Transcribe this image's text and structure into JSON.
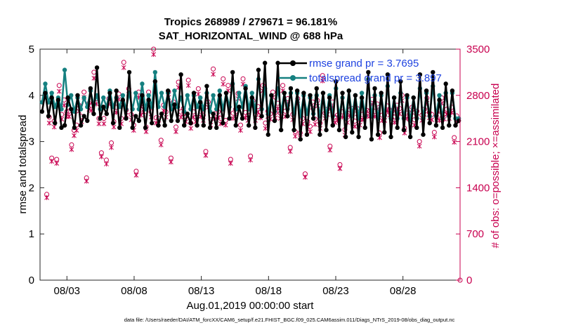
{
  "chart_data": {
    "type": "line",
    "title_line1": "Tropics 268989 / 279671 = 96.181%",
    "title_line2": "SAT_HORIZONTAL_WIND @ 688 hPa",
    "xlabel": "Aug.01,2019 00:00:00 start",
    "ylabel_left": "rmse and totalspread",
    "ylabel_right": "# of obs: o=possible; ×=assimilated",
    "footnote": "data file: /Users/raeder/DAI/ATM_forcXX/CAM6_setup/f.e21.FHIST_BGC.f09_025.CAM6assim.011/Diags_NTrS_2019-08/obs_diag_output.nc",
    "xlim": [
      0,
      31.25
    ],
    "ylim_left": [
      0,
      5
    ],
    "ylim_right": [
      0,
      3500
    ],
    "x_ticks": [
      2,
      7,
      12,
      17,
      22,
      27
    ],
    "x_tick_labels": [
      "08/03",
      "08/08",
      "08/13",
      "08/18",
      "08/23",
      "08/28"
    ],
    "y_left_ticks": [
      0,
      1,
      2,
      3,
      4,
      5
    ],
    "y_left_tick_labels": [
      "0",
      "1",
      "2",
      "3",
      "4",
      "5"
    ],
    "y_right_ticks": [
      0,
      700,
      1400,
      2100,
      2800,
      3500
    ],
    "y_right_tick_labels": [
      "0",
      "700",
      "1400",
      "2100",
      "2800",
      "3500"
    ],
    "colors": {
      "rmse": "#000000",
      "spread": "#158080",
      "obs": "#c8004f",
      "legend_text": "#1f43e0",
      "right_axis": "#c8004f"
    },
    "series": [
      {
        "name": "rmse",
        "legend": "rmse grand pr = 3.7695",
        "values": [
          3.65,
          4.05,
          3.55,
          3.95,
          3.4,
          3.9,
          3.3,
          3.35,
          3.95,
          3.7,
          3.3,
          4.0,
          3.35,
          3.55,
          3.45,
          4.15,
          3.6,
          4.6,
          3.5,
          3.75,
          3.6,
          4.05,
          3.4,
          4.1,
          3.3,
          3.9,
          3.5,
          4.5,
          3.3,
          3.55,
          3.45,
          4.0,
          3.3,
          3.9,
          3.4,
          4.3,
          3.35,
          3.6,
          3.35,
          4.1,
          3.45,
          3.8,
          3.45,
          4.45,
          3.35,
          3.6,
          3.4,
          4.05,
          3.35,
          3.85,
          3.35,
          4.2,
          3.3,
          3.6,
          3.3,
          4.0,
          3.4,
          4.05,
          3.5,
          4.5,
          3.35,
          3.75,
          3.5,
          4.15,
          3.35,
          3.95,
          3.3,
          4.55,
          3.55,
          4.7,
          3.15,
          4.0,
          3.45,
          4.7,
          3.25,
          4.05,
          3.55,
          4.15,
          3.25,
          4.1,
          3.05,
          4.05,
          3.15,
          4.0,
          3.5,
          4.15,
          3.15,
          4.05,
          3.25,
          3.95,
          3.35,
          4.3,
          3.25,
          4.05,
          3.1,
          4.1,
          3.2,
          4.0,
          3.1,
          3.95,
          3.3,
          4.5,
          3.05,
          4.15,
          3.15,
          4.05,
          3.2,
          4.45,
          3.1,
          3.95,
          3.3,
          4.3,
          3.25,
          4.0,
          3.1,
          3.95,
          3.3,
          4.45,
          3.15,
          4.1,
          3.4,
          4.5,
          3.35,
          3.9,
          3.3,
          4.25,
          3.35,
          4.1,
          3.35,
          3.45
        ]
      },
      {
        "name": "totalspread",
        "legend": "totalspread grand pr = 3.897",
        "values": [
          3.85,
          4.25,
          3.85,
          4.05,
          3.75,
          3.95,
          3.7,
          4.55,
          3.8,
          4.0,
          3.65,
          3.95,
          3.7,
          3.95,
          3.75,
          4.1,
          3.8,
          4.0,
          3.7,
          3.95,
          3.75,
          4.1,
          3.75,
          3.95,
          3.75,
          4.0,
          3.7,
          4.05,
          3.7,
          4.05,
          3.7,
          4.25,
          3.7,
          4.0,
          3.75,
          4.5,
          3.75,
          4.05,
          3.75,
          4.05,
          3.7,
          4.1,
          3.75,
          3.95,
          3.65,
          4.0,
          3.7,
          4.0,
          3.75,
          3.95,
          3.7,
          4.05,
          3.65,
          4.0,
          3.7,
          4.1,
          3.7,
          4.05,
          3.75,
          4.25,
          3.7,
          4.05,
          3.75,
          4.2,
          3.7,
          4.05,
          3.65,
          4.35,
          3.7,
          4.15,
          3.6,
          4.0,
          3.65,
          4.15,
          3.65,
          4.05,
          3.7,
          4.05,
          3.6,
          4.05,
          3.55,
          4.0,
          3.6,
          3.95,
          3.6,
          4.0,
          3.55,
          4.05,
          3.55,
          4.0,
          3.55,
          4.15,
          3.55,
          3.95,
          3.5,
          4.1,
          3.55,
          4.0,
          3.5,
          4.05,
          3.55,
          4.35,
          3.55,
          4.0,
          3.5,
          4.0,
          3.55,
          4.2,
          3.5,
          3.95,
          3.5,
          4.05,
          3.5,
          3.95,
          3.45,
          3.95,
          3.5,
          4.15,
          3.5,
          4.05,
          3.55,
          4.2,
          3.55,
          4.0,
          3.5,
          4.05,
          3.55,
          4.05,
          3.5,
          3.5
        ]
      },
      {
        "name": "obs_possible",
        "marker": "o",
        "values": [
          1300,
          2470,
          1850,
          2410,
          1830,
          2950,
          2510,
          2730,
          2550,
          2560,
          2050,
          2270,
          2350,
          2650,
          2480,
          2850,
          1550,
          2680,
          2650,
          3150,
          2750,
          2450,
          1930,
          2450,
          1820,
          2750,
          2080,
          2400,
          2620,
          2820,
          2450,
          3300,
          2580,
          2900,
          2510,
          2350,
          1650,
          2850,
          2580,
          2630,
          2320,
          2850,
          2550,
          3500,
          2460,
          2450,
          2120,
          2650,
          2550,
          2850,
          1850,
          2700,
          2320,
          3000,
          2550,
          2600,
          2480,
          3030,
          2380,
          2550,
          2470,
          2900,
          2560,
          2500,
          1950,
          2700,
          2430,
          3200,
          2530,
          2550,
          2450,
          3050,
          2420,
          2950,
          1830,
          2530,
          2590,
          2830,
          2350,
          3050,
          2540,
          2500,
          1880,
          2720,
          2500,
          2630,
          2540,
          2950,
          2380,
          2560,
          2520,
          2850,
          2540,
          2680,
          2530,
          2950,
          2560,
          2750,
          2010,
          2510,
          2250,
          2750,
          2230,
          2450,
          1610,
          2400,
          2330,
          2700,
          2440,
          2720,
          2380,
          3100,
          2530,
          2590,
          2030,
          2700,
          2470,
          2500,
          1750,
          2550,
          2280,
          2470,
          2580,
          2600,
          2410,
          2600,
          2430,
          2510,
          2560,
          2570,
          2560,
          2740,
          2560,
          2670,
          2230,
          2500,
          2500,
          2640,
          2580,
          2560,
          2470,
          2650,
          2600,
          2800,
          2300,
          2530,
          2520,
          2620,
          2430,
          2560,
          2100,
          2500,
          2590,
          2760,
          2540,
          2510,
          2240,
          2550,
          2500,
          2760,
          2520,
          2590,
          2530,
          2620,
          2160,
          2490
        ]
      },
      {
        "name": "obs_assimilated",
        "marker": "x",
        "values": [
          1250,
          2380,
          1800,
          2320,
          1770,
          2860,
          2440,
          2650,
          2480,
          2480,
          1980,
          2190,
          2270,
          2560,
          2400,
          2770,
          1500,
          2590,
          2570,
          3060,
          2670,
          2370,
          1870,
          2370,
          1760,
          2670,
          2010,
          2320,
          2540,
          2740,
          2370,
          3220,
          2500,
          2820,
          2430,
          2270,
          1590,
          2770,
          2500,
          2550,
          2250,
          2770,
          2470,
          3420,
          2380,
          2370,
          2050,
          2570,
          2470,
          2770,
          1790,
          2620,
          2250,
          2920,
          2470,
          2520,
          2400,
          2950,
          2300,
          2470,
          2400,
          2820,
          2480,
          2420,
          1890,
          2620,
          2350,
          3120,
          2450,
          2470,
          2370,
          2970,
          2350,
          2870,
          1770,
          2450,
          2510,
          2750,
          2270,
          2970,
          2460,
          2420,
          1820,
          2640,
          2420,
          2550,
          2460,
          2870,
          2300,
          2480,
          2440,
          2770,
          2460,
          2600,
          2450,
          2870,
          2480,
          2670,
          1950,
          2430,
          2180,
          2670,
          2160,
          2370,
          1560,
          2320,
          2250,
          2620,
          2360,
          2640,
          2300,
          3020,
          2450,
          2510,
          1970,
          2620,
          2390,
          2420,
          1690,
          2470,
          2200,
          2390,
          2500,
          2520,
          2330,
          2520,
          2350,
          2430,
          2480,
          2490,
          2480,
          2660,
          2480,
          2590,
          2160,
          2420,
          2420,
          2560,
          2500,
          2480,
          2390,
          2570,
          2520,
          2720,
          2230,
          2450,
          2440,
          2540,
          2350,
          2480,
          2030,
          2420,
          2510,
          2680,
          2460,
          2430,
          2170,
          2470,
          2420,
          2680,
          2440,
          2510,
          2450,
          2540,
          2090,
          2410
        ]
      }
    ]
  }
}
